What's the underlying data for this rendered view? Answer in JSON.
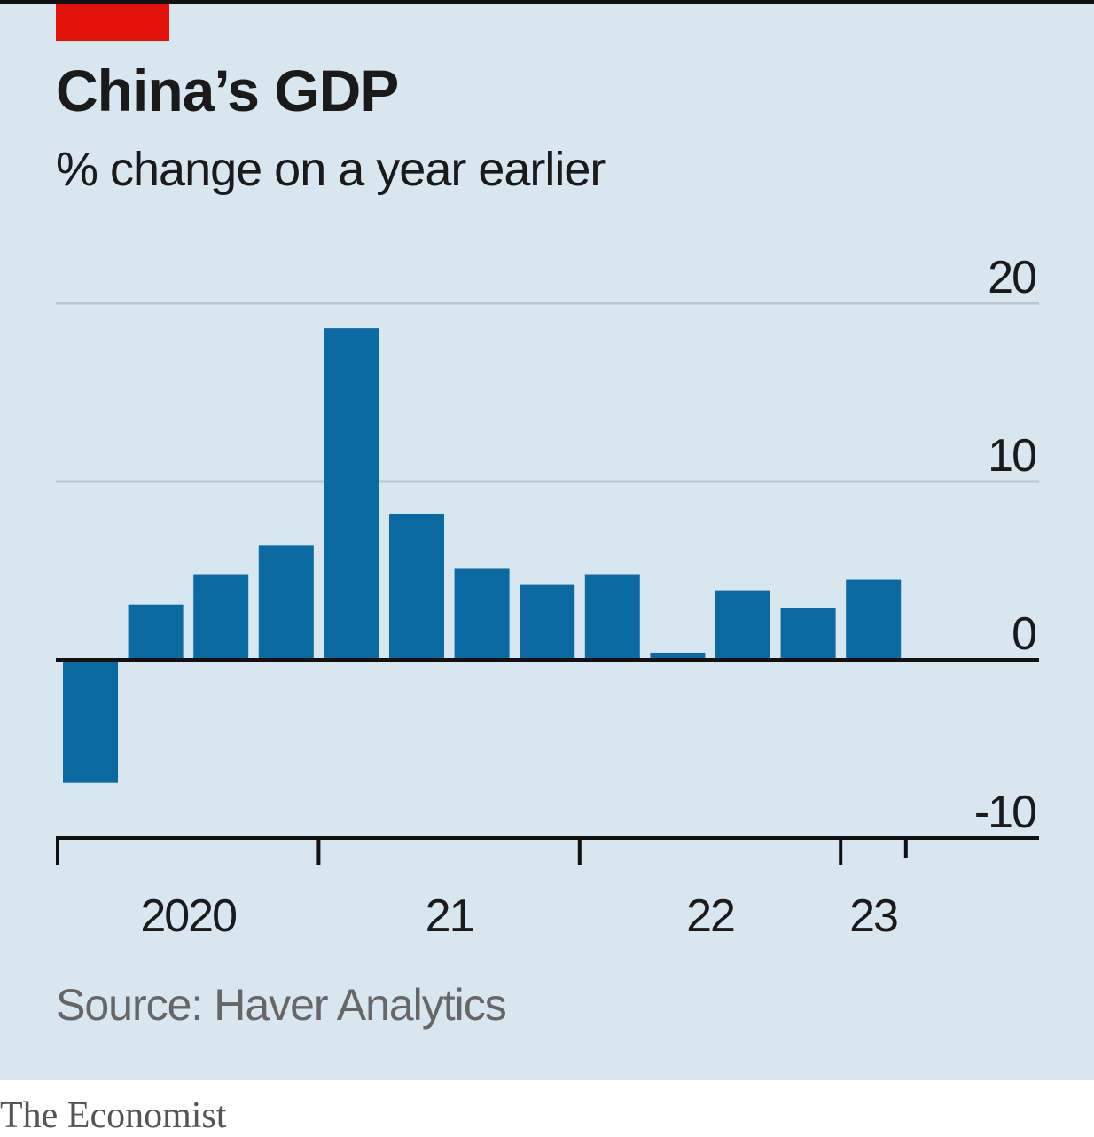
{
  "title": "China’s GDP",
  "subtitle": "% change on a year earlier",
  "source": "Source: Haver Analytics",
  "brand": "The Economist",
  "colors": {
    "background": "#d8e6f0",
    "bar": "#0b6aa2",
    "accent": "#e3120b",
    "gridline": "#b9c6cf",
    "axis": "#111111"
  },
  "chart_data": {
    "type": "bar",
    "title": "China’s GDP",
    "subtitle": "% change on a year earlier",
    "xlabel": "",
    "ylabel": "",
    "ylim": [
      -10,
      20
    ],
    "yticks": [
      20,
      10,
      0,
      -10
    ],
    "ytick_labels": [
      "20",
      "10",
      "0",
      "-10"
    ],
    "grid": true,
    "y_axis_side": "right",
    "categories": [
      "2020 Q1",
      "2020 Q2",
      "2020 Q3",
      "2020 Q4",
      "2021 Q1",
      "2021 Q2",
      "2021 Q3",
      "2021 Q4",
      "2022 Q1",
      "2022 Q2",
      "2022 Q3",
      "2022 Q4",
      "2023 Q1"
    ],
    "values": [
      -6.9,
      3.1,
      4.8,
      6.4,
      18.6,
      8.2,
      5.1,
      4.2,
      4.8,
      0.4,
      3.9,
      2.9,
      4.5
    ],
    "year_labels": [
      {
        "label": "2020",
        "start_index": 0,
        "span": 4
      },
      {
        "label": "21",
        "start_index": 4,
        "span": 4
      },
      {
        "label": "22",
        "start_index": 8,
        "span": 4
      },
      {
        "label": "23",
        "start_index": 12,
        "span": 1
      }
    ]
  }
}
